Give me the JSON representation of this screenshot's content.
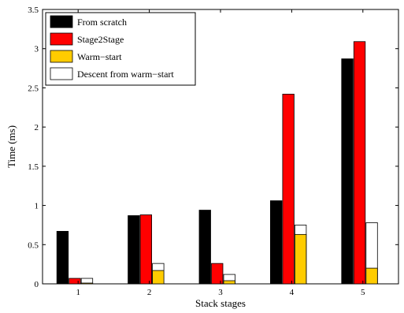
{
  "chart_data": {
    "type": "bar",
    "xlabel": "Stack stages",
    "ylabel": "Time (ms)",
    "categories": [
      "1",
      "2",
      "3",
      "4",
      "5"
    ],
    "ylim": [
      0,
      3.5
    ],
    "yticks": [
      "0",
      "0.5",
      "1",
      "1.5",
      "2",
      "2.5",
      "3",
      "3.5"
    ],
    "ytick_values": [
      0,
      0.5,
      1,
      1.5,
      2,
      2.5,
      3,
      3.5
    ],
    "grid": false,
    "legend_position": "top-left",
    "series": [
      {
        "name": "From scratch",
        "color": "#000000",
        "values": [
          0.67,
          0.87,
          0.94,
          1.06,
          2.87
        ]
      },
      {
        "name": "Stage2Stage",
        "color": "#ff0000",
        "values": [
          0.07,
          0.88,
          0.26,
          2.42,
          3.09
        ]
      },
      {
        "name": "Warm−start",
        "color": "#ffcc00",
        "values": [
          0.01,
          0.17,
          0.04,
          0.63,
          0.2
        ]
      },
      {
        "name": "Descent from warm−start",
        "color": "#ffffff",
        "values": [
          0.07,
          0.26,
          0.12,
          0.75,
          0.78
        ]
      }
    ],
    "stacked_note_series": [
      "Warm−start",
      "Descent from warm−start"
    ]
  }
}
